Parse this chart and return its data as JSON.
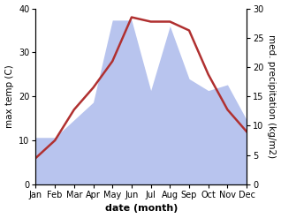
{
  "months": [
    "Jan",
    "Feb",
    "Mar",
    "Apr",
    "May",
    "Jun",
    "Jul",
    "Aug",
    "Sep",
    "Oct",
    "Nov",
    "Dec"
  ],
  "temperature": [
    6,
    10,
    17,
    22,
    28,
    38,
    37,
    37,
    35,
    25,
    17,
    12
  ],
  "precipitation": [
    8,
    8,
    11,
    14,
    28,
    28,
    16,
    27,
    18,
    16,
    17,
    11
  ],
  "temp_color": "#b03030",
  "precip_color": "#b8c4ee",
  "temp_ylim": [
    0,
    40
  ],
  "precip_ylim": [
    0,
    30
  ],
  "temp_yticks": [
    0,
    10,
    20,
    30,
    40
  ],
  "precip_yticks": [
    0,
    5,
    10,
    15,
    20,
    25,
    30
  ],
  "xlabel": "date (month)",
  "ylabel_left": "max temp (C)",
  "ylabel_right": "med. precipitation (kg/m2)",
  "bg_color": "#ffffff",
  "line_width": 1.8,
  "font_size_labels": 7.5,
  "font_size_ticks": 7
}
